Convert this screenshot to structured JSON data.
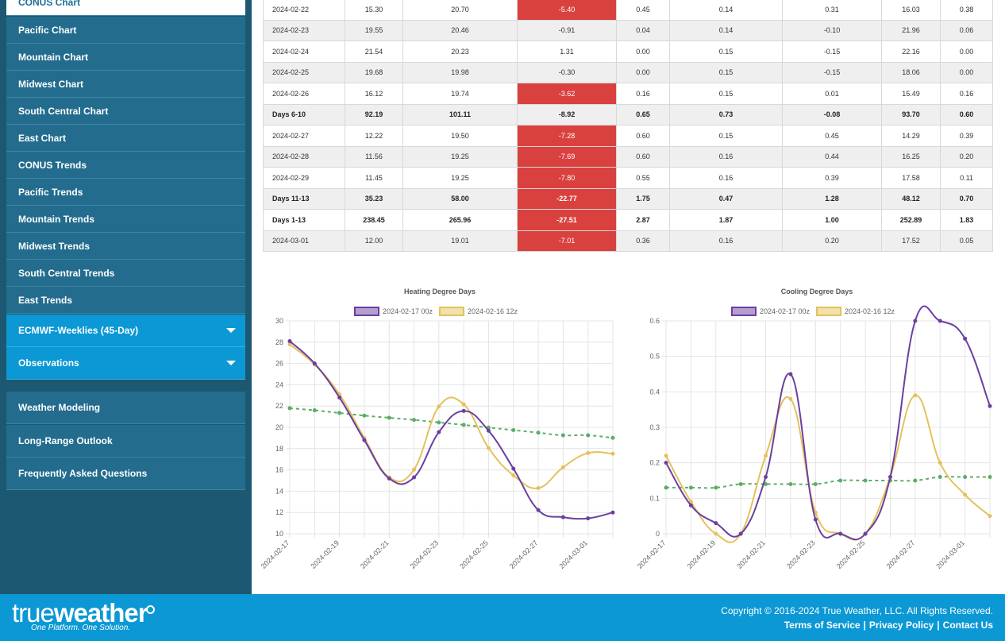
{
  "sidebar": {
    "items": [
      {
        "label": "CONUS Chart",
        "active": true
      },
      {
        "label": "Pacific Chart"
      },
      {
        "label": "Mountain Chart"
      },
      {
        "label": "Midwest Chart"
      },
      {
        "label": "South Central Chart"
      },
      {
        "label": "East Chart"
      },
      {
        "label": "CONUS Trends"
      },
      {
        "label": "Pacific Trends"
      },
      {
        "label": "Mountain Trends"
      },
      {
        "label": "Midwest Trends"
      },
      {
        "label": "South Central Trends"
      },
      {
        "label": "East Trends"
      }
    ],
    "dropdowns": [
      "ECMWF-Weeklies (45-Day)",
      "Observations"
    ],
    "links": [
      "Weather Modeling",
      "Long-Range Outlook",
      "Frequently Asked Questions"
    ]
  },
  "table": {
    "rows": [
      {
        "cells": [
          "2024-02-22",
          "15.30",
          "20.70",
          "-5.40",
          "0.45",
          "0.14",
          "0.31",
          "16.03",
          "0.38"
        ],
        "highlight": true
      },
      {
        "cells": [
          "2024-02-23",
          "19.55",
          "20.46",
          "-0.91",
          "0.04",
          "0.14",
          "-0.10",
          "21.96",
          "0.06"
        ]
      },
      {
        "cells": [
          "2024-02-24",
          "21.54",
          "20.23",
          "1.31",
          "0.00",
          "0.15",
          "-0.15",
          "22.16",
          "0.00"
        ]
      },
      {
        "cells": [
          "2024-02-25",
          "19.68",
          "19.98",
          "-0.30",
          "0.00",
          "0.15",
          "-0.15",
          "18.06",
          "0.00"
        ]
      },
      {
        "cells": [
          "2024-02-26",
          "16.12",
          "19.74",
          "-3.62",
          "0.16",
          "0.15",
          "0.01",
          "15.49",
          "0.16"
        ],
        "highlight": true
      },
      {
        "cells": [
          "Days 6-10",
          "92.19",
          "101.11",
          "-8.92",
          "0.65",
          "0.73",
          "-0.08",
          "93.70",
          "0.60"
        ],
        "total": true
      },
      {
        "cells": [
          "2024-02-27",
          "12.22",
          "19.50",
          "-7.28",
          "0.60",
          "0.15",
          "0.45",
          "14.29",
          "0.39"
        ],
        "highlight": true
      },
      {
        "cells": [
          "2024-02-28",
          "11.56",
          "19.25",
          "-7.69",
          "0.60",
          "0.16",
          "0.44",
          "16.25",
          "0.20"
        ],
        "highlight": true
      },
      {
        "cells": [
          "2024-02-29",
          "11.45",
          "19.25",
          "-7.80",
          "0.55",
          "0.16",
          "0.39",
          "17.58",
          "0.11"
        ],
        "highlight": true
      },
      {
        "cells": [
          "Days 11-13",
          "35.23",
          "58.00",
          "-22.77",
          "1.75",
          "0.47",
          "1.28",
          "48.12",
          "0.70"
        ],
        "highlight": true,
        "total": true
      },
      {
        "cells": [
          "Days 1-13",
          "238.45",
          "265.96",
          "-27.51",
          "2.87",
          "1.87",
          "1.00",
          "252.89",
          "1.83"
        ],
        "highlight": true,
        "total": true
      },
      {
        "cells": [
          "2024-03-01",
          "12.00",
          "19.01",
          "-7.01",
          "0.36",
          "0.16",
          "0.20",
          "17.52",
          "0.05"
        ],
        "highlight": true
      }
    ]
  },
  "chart_data": [
    {
      "type": "line",
      "title": "Heating Degree Days",
      "categories": [
        "2024-02-17",
        null,
        "2024-02-19",
        null,
        "2024-02-21",
        null,
        "2024-02-23",
        null,
        "2024-02-25",
        null,
        "2024-02-27",
        null,
        "2024-03-01",
        null
      ],
      "ylim": [
        10,
        30
      ],
      "yticks": [
        10,
        12,
        14,
        16,
        18,
        20,
        22,
        24,
        26,
        28,
        30
      ],
      "grid": true,
      "series": [
        {
          "name": "2024-02-17 00z",
          "color": "#6b3fa0",
          "values": [
            28.1,
            26.0,
            22.8,
            18.8,
            15.2,
            15.3,
            19.55,
            21.54,
            19.68,
            16.12,
            12.22,
            11.56,
            11.45,
            12.0
          ]
        },
        {
          "name": "2024-02-16 12z",
          "color": "#e5c15c",
          "values": [
            27.8,
            25.9,
            23.1,
            19.0,
            15.3,
            16.03,
            21.96,
            22.16,
            18.06,
            15.49,
            14.29,
            16.25,
            17.58,
            17.52
          ]
        },
        {
          "color": "#5cad65",
          "dashed": true,
          "values": [
            21.8,
            21.6,
            21.35,
            21.1,
            20.9,
            20.7,
            20.46,
            20.23,
            19.98,
            19.74,
            19.5,
            19.25,
            19.25,
            19.01
          ]
        }
      ]
    },
    {
      "type": "line",
      "title": "Cooling Degree Days",
      "categories": [
        "2024-02-17",
        null,
        "2024-02-19",
        null,
        "2024-02-21",
        null,
        "2024-02-23",
        null,
        "2024-02-25",
        null,
        "2024-02-27",
        null,
        "2024-03-01",
        null
      ],
      "ylim": [
        0,
        0.6
      ],
      "yticks": [
        0,
        0.1,
        0.2,
        0.3,
        0.4,
        0.5,
        0.6
      ],
      "grid": true,
      "series": [
        {
          "name": "2024-02-17 00z",
          "color": "#6b3fa0",
          "values": [
            0.2,
            0.08,
            0.03,
            0.0,
            0.16,
            0.45,
            0.04,
            0.0,
            0.0,
            0.16,
            0.6,
            0.6,
            0.55,
            0.36
          ]
        },
        {
          "name": "2024-02-16 12z",
          "color": "#e5c15c",
          "values": [
            0.22,
            0.09,
            0.0,
            0.0,
            0.22,
            0.38,
            0.06,
            0.0,
            0.0,
            0.16,
            0.39,
            0.2,
            0.11,
            0.05
          ]
        },
        {
          "color": "#5cad65",
          "dashed": true,
          "values": [
            0.13,
            0.13,
            0.13,
            0.14,
            0.14,
            0.14,
            0.14,
            0.15,
            0.15,
            0.15,
            0.15,
            0.16,
            0.16,
            0.16
          ]
        }
      ]
    }
  ],
  "footer": {
    "logo_light": "true",
    "logo_bold": "weather",
    "tagline": "One Platform. One Solution.",
    "copyright": "Copyright © 2016-2024 True Weather, LLC. All Rights Reserved.",
    "separator": "|",
    "links": [
      "Terms of Service",
      "Privacy Policy",
      "Contact Us"
    ]
  }
}
